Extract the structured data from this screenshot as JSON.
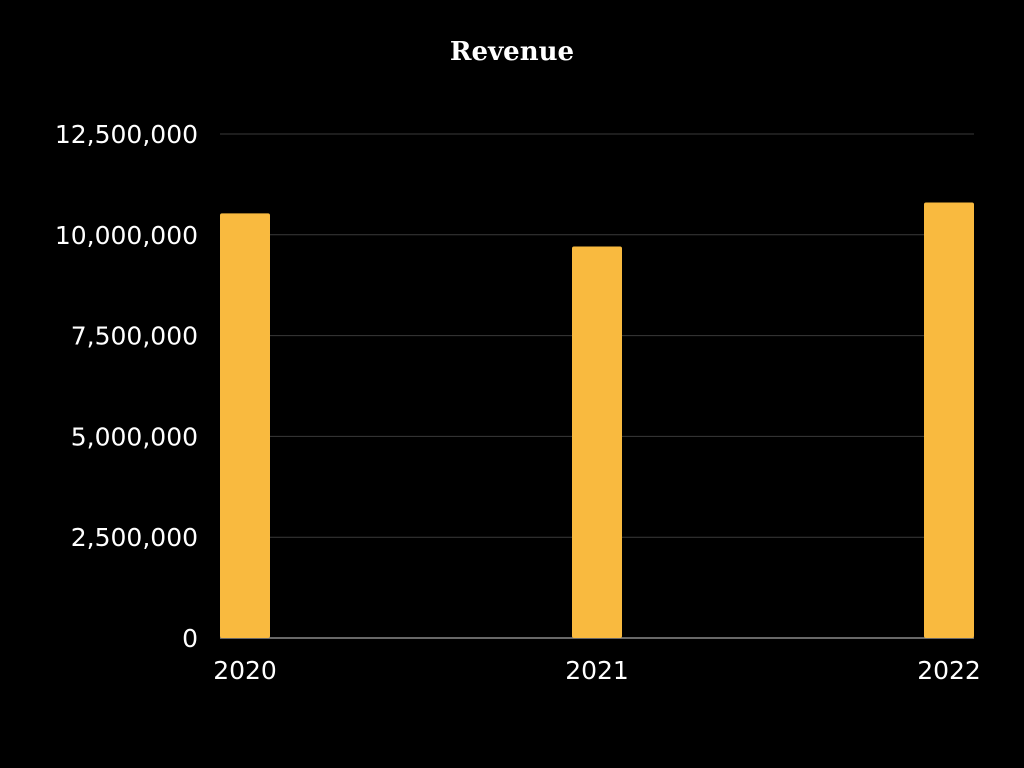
{
  "chart_data": {
    "type": "bar",
    "title": "Revenue",
    "categories": [
      "2020",
      "2021",
      "2022"
    ],
    "values": [
      10530000,
      9710000,
      10800000
    ],
    "xlabel": "",
    "ylabel": "",
    "ylim": [
      0,
      12500000
    ],
    "yticks": [
      0,
      2500000,
      5000000,
      7500000,
      10000000,
      12500000
    ],
    "ytick_labels": [
      "0",
      "2,500,000",
      "5,000,000",
      "7,500,000",
      "10,000,000",
      "12,500,000"
    ],
    "grid": true,
    "legend": "none",
    "colors": {
      "background": "#000000",
      "bar": "#F9BA3F",
      "text": "#ffffff",
      "grid": "#3a3a3a"
    }
  }
}
